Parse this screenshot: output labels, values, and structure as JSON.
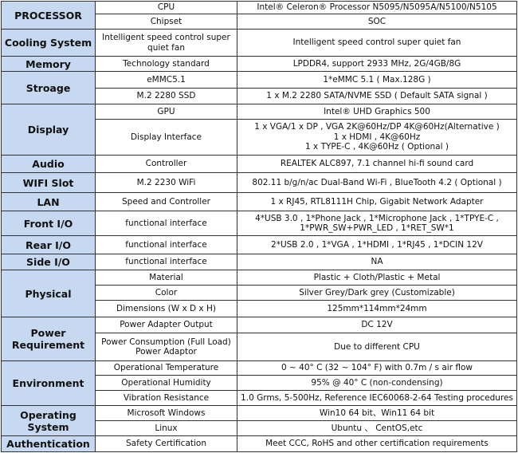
{
  "categories": [
    {
      "name": "PROCESSOR",
      "rows": [
        {
          "item": "CPU",
          "value": "Intel®  Celeron® Processor  N5095/N5095A/N5100/N5105"
        },
        {
          "item": "Chipset",
          "value": "SOC"
        }
      ]
    },
    {
      "name": "Cooling System",
      "rows": [
        {
          "item": "Intelligent speed control super quiet fan",
          "value": "Intelligent speed control super quiet fan"
        }
      ]
    },
    {
      "name": "Memory",
      "rows": [
        {
          "item": "Technology standard",
          "value": "LPDDR4, support 2933 MHz, 2G/4GB/8G"
        }
      ]
    },
    {
      "name": "Stroage",
      "rows": [
        {
          "item": "eMMC5.1",
          "value": "1*eMMC 5.1 ( Max.128G )"
        },
        {
          "item": "M.2  2280 SSD",
          "value": "1 x M.2 2280 SATA/NVME SSD ( Default SATA signal )"
        }
      ]
    },
    {
      "name": "Display",
      "rows": [
        {
          "item": "GPU",
          "value": "Intel® UHD Graphics  500"
        },
        {
          "item": "Display Interface",
          "value": "1 x VGA/1 x DP , VGA 2K@60Hz/DP 4K@60Hz(Alternative )\n1 x HDMI , 4K@60Hz\n1 x TYPE-C , 4K@60Hz (  Optional )"
        }
      ]
    },
    {
      "name": "Audio",
      "rows": [
        {
          "item": "Controller",
          "value": "REALTEK ALC897, 7.1 channel hi-fi sound card"
        }
      ]
    },
    {
      "name": "WIFI  Slot",
      "rows": [
        {
          "item": "M.2 2230 WiFi",
          "value": "802.11 b/g/n/ac Dual-Band Wi-Fi , BlueTooth 4.2 (  Optional )"
        }
      ]
    },
    {
      "name": "LAN",
      "rows": [
        {
          "item": "Speed and  Controller",
          "value": "1 x RJ45, RTL8111H Chip, Gigabit Network Adapter"
        }
      ]
    },
    {
      "name": "Front I/O",
      "rows": [
        {
          "item": "functional interface",
          "value": "4*USB 3.0 , 1*Phone Jack , 1*Microphone Jack , 1*TPYE-C ,\n1*PWR_SW+PWR_LED , 1*RET_SW*1"
        }
      ]
    },
    {
      "name": "Rear I/O",
      "rows": [
        {
          "item": "functional interface",
          "value": "2*USB 2.0 , 1*VGA , 1*HDMI , 1*RJ45 , 1*DCIN 12V"
        }
      ]
    },
    {
      "name": "Side I/O",
      "rows": [
        {
          "item": "functional interface",
          "value": "NA"
        }
      ]
    },
    {
      "name": "Physical",
      "rows": [
        {
          "item": "Material",
          "value": "Plastic + Cloth/Plastic + Metal"
        },
        {
          "item": "Color",
          "value": "Silver Grey/Dark grey (Customizable)"
        },
        {
          "item": "Dimensions (W x D x H)",
          "value": "125mm*114mm*24mm"
        }
      ]
    },
    {
      "name": "Power Requirement",
      "rows": [
        {
          "item": "Power Adapter Output",
          "value": "DC 12V"
        },
        {
          "item": "Power Consumption (Full Load)\nPower Adaptor",
          "value": "Due to different CPU"
        }
      ]
    },
    {
      "name": "Environment",
      "rows": [
        {
          "item": "Operational Temperature",
          "value": "0 ~ 40° C (32 ~ 104° F) with 0.7m / s air flow"
        },
        {
          "item": "Operational Humidity",
          "value": "95% @ 40° C (non-condensing)"
        },
        {
          "item": "Vibration Resistance",
          "value": "1.0 Grms, 5-500Hz, Reference IEC60068-2-64 Testing procedures"
        }
      ]
    },
    {
      "name": "Operating System",
      "rows": [
        {
          "item": "Microsoft Windows",
          "value": "Win10 64 bit、Win11 64 bit"
        },
        {
          "item": "Linux",
          "value": "Ubuntu 、 CentOS,etc"
        }
      ]
    },
    {
      "name": "Authentication",
      "rows": [
        {
          "item": "Safety Certification",
          "value": "Meet CCC, RoHS and other certification requirements"
        }
      ]
    }
  ]
}
